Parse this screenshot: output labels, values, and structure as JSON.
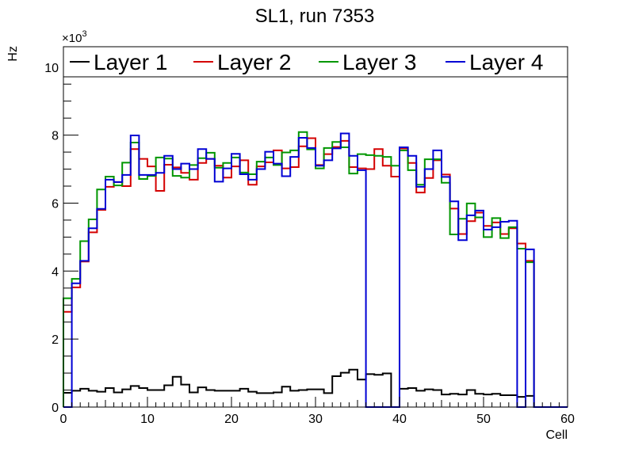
{
  "chart_data": {
    "type": "line",
    "style": "step-histogram",
    "title": "SL1, run 7353",
    "xlabel": "Cell",
    "ylabel": "Hz",
    "y_multiplier": "×10",
    "y_multiplier_exp": "3",
    "xlim": [
      0,
      60
    ],
    "ylim": [
      0,
      10.6
    ],
    "x_ticks": [
      "0",
      "10",
      "20",
      "30",
      "40",
      "50",
      "60"
    ],
    "y_ticks": [
      "0",
      "2",
      "4",
      "6",
      "8",
      "10"
    ],
    "grid": false,
    "legend_position": "top",
    "bin_edges_start": 0,
    "bin_width": 1,
    "series": [
      {
        "name": "Layer 1",
        "color": "#000000",
        "values": [
          0.42,
          0.48,
          0.54,
          0.48,
          0.45,
          0.56,
          0.43,
          0.52,
          0.62,
          0.56,
          0.5,
          0.5,
          0.64,
          0.89,
          0.66,
          0.43,
          0.58,
          0.5,
          0.48,
          0.48,
          0.48,
          0.54,
          0.45,
          0.41,
          0.41,
          0.43,
          0.6,
          0.48,
          0.5,
          0.52,
          0.52,
          0.41,
          0.91,
          1.01,
          1.1,
          0.81,
          0.97,
          0.95,
          0.99,
          0,
          0.54,
          0.56,
          0.48,
          0.52,
          0.5,
          0.37,
          0.39,
          0.37,
          0.5,
          0.39,
          0.37,
          0.39,
          0.35,
          0.35,
          0.3,
          0.33,
          0,
          0,
          0,
          0
        ]
      },
      {
        "name": "Layer 2",
        "color": "#d40000",
        "values": [
          2.8,
          3.52,
          4.28,
          5.14,
          5.8,
          6.48,
          6.62,
          6.5,
          7.59,
          7.3,
          7.08,
          6.36,
          7.13,
          7.05,
          6.89,
          6.69,
          7.18,
          7.3,
          7.1,
          6.75,
          7.08,
          7.26,
          6.54,
          7.08,
          7.2,
          7.55,
          7.02,
          7.06,
          7.67,
          7.91,
          7.12,
          7.44,
          7.65,
          7.83,
          7.06,
          7.02,
          7.0,
          7.59,
          7.1,
          6.78,
          7.61,
          7.18,
          6.31,
          6.74,
          7.26,
          6.84,
          5.84,
          5.09,
          5.47,
          5.72,
          5.33,
          5.43,
          5.09,
          5.26,
          4.81,
          4.3,
          0,
          0,
          0,
          0
        ]
      },
      {
        "name": "Layer 3",
        "color": "#009600",
        "values": [
          3.2,
          3.77,
          4.88,
          5.52,
          6.4,
          6.78,
          6.52,
          7.19,
          7.78,
          6.71,
          6.8,
          7.34,
          7.31,
          6.8,
          6.75,
          7.12,
          7.32,
          7.48,
          7.04,
          7.18,
          7.34,
          6.9,
          6.85,
          7.22,
          7.34,
          7.12,
          7.49,
          7.55,
          8.09,
          7.58,
          7.02,
          7.62,
          7.8,
          7.64,
          6.87,
          7.44,
          7.41,
          7.39,
          7.36,
          7.1,
          7.55,
          6.97,
          6.54,
          7.29,
          7.29,
          6.6,
          5.08,
          5.54,
          5.99,
          5.58,
          5.0,
          5.56,
          4.97,
          5.29,
          4.66,
          4.26,
          0,
          0,
          0,
          0
        ]
      },
      {
        "name": "Layer 4",
        "color": "#0000d4",
        "values": [
          0,
          3.64,
          4.3,
          5.26,
          5.83,
          6.69,
          6.62,
          6.83,
          7.99,
          6.83,
          6.83,
          6.89,
          7.39,
          7.0,
          7.16,
          7.0,
          7.59,
          7.3,
          6.63,
          7.02,
          7.45,
          6.85,
          6.69,
          7.0,
          7.51,
          7.16,
          6.79,
          7.36,
          7.92,
          7.62,
          7.1,
          7.26,
          7.61,
          8.05,
          7.39,
          6.97,
          0,
          0,
          0,
          0,
          7.64,
          7.39,
          6.48,
          7.0,
          7.55,
          6.77,
          6.05,
          4.91,
          5.64,
          5.78,
          5.22,
          5.29,
          5.45,
          5.48,
          0,
          4.64,
          0,
          0,
          0,
          0
        ]
      }
    ]
  }
}
